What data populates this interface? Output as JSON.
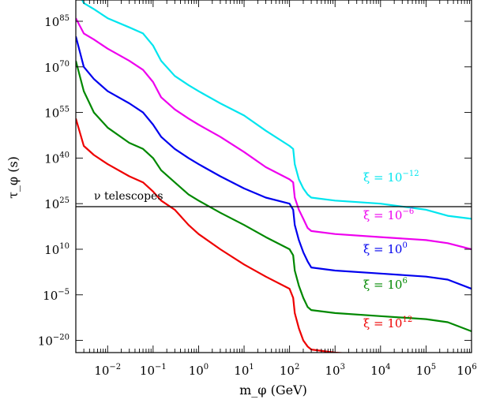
{
  "chart_data": {
    "type": "line",
    "xlabel": "m_φ (GeV)",
    "ylabel": "τ_φ (s)",
    "x_scale": "log",
    "y_scale": "log",
    "xlim": [
      0.002,
      1000000
    ],
    "ylim_log10": [
      -24,
      92
    ],
    "x_ticks": [
      {
        "base": "10",
        "exp": "−2",
        "value": 0.01
      },
      {
        "base": "10",
        "exp": "−1",
        "value": 0.1
      },
      {
        "base": "10",
        "exp": "0",
        "value": 1
      },
      {
        "base": "10",
        "exp": "1",
        "value": 10
      },
      {
        "base": "10",
        "exp": "2",
        "value": 100
      },
      {
        "base": "10",
        "exp": "3",
        "value": 1000
      },
      {
        "base": "10",
        "exp": "4",
        "value": 10000
      },
      {
        "base": "10",
        "exp": "5",
        "value": 100000
      },
      {
        "base": "10",
        "exp": "6",
        "value": 1000000
      }
    ],
    "y_ticks": [
      {
        "base": "10",
        "exp": "85",
        "log10": 85
      },
      {
        "base": "10",
        "exp": "70",
        "log10": 70
      },
      {
        "base": "10",
        "exp": "55",
        "log10": 55
      },
      {
        "base": "10",
        "exp": "40",
        "log10": 40
      },
      {
        "base": "10",
        "exp": "25",
        "log10": 25
      },
      {
        "base": "10",
        "exp": "10",
        "log10": 10
      },
      {
        "base": "10",
        "exp": "−5",
        "log10": -5
      },
      {
        "base": "10",
        "exp": "−20",
        "log10": -20
      }
    ],
    "reference_line": {
      "label": "ν telescopes",
      "log10_y": 24
    },
    "grid": false,
    "series": [
      {
        "name": "ξ = 10^−12",
        "label_base": "ξ = 10",
        "label_exp": "−12",
        "color": "#00e5ee",
        "points": [
          [
            0.002,
            96
          ],
          [
            0.003,
            91
          ],
          [
            0.005,
            89
          ],
          [
            0.01,
            86
          ],
          [
            0.03,
            83
          ],
          [
            0.06,
            81
          ],
          [
            0.1,
            77
          ],
          [
            0.15,
            72
          ],
          [
            0.3,
            67
          ],
          [
            0.6,
            64
          ],
          [
            1,
            62
          ],
          [
            3,
            58
          ],
          [
            10,
            54
          ],
          [
            30,
            49
          ],
          [
            100,
            44
          ],
          [
            120,
            43
          ],
          [
            130,
            38
          ],
          [
            160,
            33
          ],
          [
            200,
            30
          ],
          [
            250,
            28
          ],
          [
            300,
            27
          ],
          [
            1000,
            26
          ],
          [
            10000,
            25
          ],
          [
            100000,
            23
          ],
          [
            300000,
            21
          ],
          [
            1000000,
            20
          ]
        ]
      },
      {
        "name": "ξ = 10^−6",
        "label_base": "ξ = 10",
        "label_exp": "−6",
        "color": "#ee00ee",
        "points": [
          [
            0.002,
            86
          ],
          [
            0.003,
            81
          ],
          [
            0.005,
            79
          ],
          [
            0.01,
            76
          ],
          [
            0.03,
            72
          ],
          [
            0.06,
            69
          ],
          [
            0.1,
            65
          ],
          [
            0.15,
            60
          ],
          [
            0.3,
            56
          ],
          [
            0.6,
            53
          ],
          [
            1,
            51
          ],
          [
            3,
            47
          ],
          [
            10,
            42
          ],
          [
            30,
            37
          ],
          [
            100,
            33
          ],
          [
            120,
            32
          ],
          [
            130,
            27
          ],
          [
            160,
            23
          ],
          [
            200,
            20
          ],
          [
            250,
            17
          ],
          [
            300,
            16
          ],
          [
            1000,
            15
          ],
          [
            10000,
            14
          ],
          [
            100000,
            13
          ],
          [
            300000,
            12
          ],
          [
            1000000,
            10
          ]
        ]
      },
      {
        "name": "ξ = 10^0",
        "label_base": "ξ = 10",
        "label_exp": "0",
        "color": "#0000ee",
        "points": [
          [
            0.002,
            80
          ],
          [
            0.003,
            70
          ],
          [
            0.005,
            66
          ],
          [
            0.01,
            62
          ],
          [
            0.03,
            58
          ],
          [
            0.06,
            55
          ],
          [
            0.1,
            51
          ],
          [
            0.15,
            47
          ],
          [
            0.3,
            43
          ],
          [
            0.6,
            40
          ],
          [
            1,
            38
          ],
          [
            3,
            34
          ],
          [
            10,
            30
          ],
          [
            30,
            27
          ],
          [
            100,
            25
          ],
          [
            120,
            23
          ],
          [
            130,
            18
          ],
          [
            160,
            13
          ],
          [
            200,
            9
          ],
          [
            250,
            6
          ],
          [
            300,
            4
          ],
          [
            1000,
            3
          ],
          [
            10000,
            2
          ],
          [
            100000,
            1
          ],
          [
            300000,
            0
          ],
          [
            1000000,
            -3
          ]
        ]
      },
      {
        "name": "ξ = 10^6",
        "label_base": "ξ = 10",
        "label_exp": "6",
        "color": "#008800",
        "points": [
          [
            0.002,
            72
          ],
          [
            0.003,
            62
          ],
          [
            0.005,
            55
          ],
          [
            0.01,
            50
          ],
          [
            0.03,
            45
          ],
          [
            0.06,
            43
          ],
          [
            0.1,
            40
          ],
          [
            0.15,
            36
          ],
          [
            0.3,
            32
          ],
          [
            0.6,
            28
          ],
          [
            1,
            26
          ],
          [
            3,
            22
          ],
          [
            10,
            18
          ],
          [
            30,
            14
          ],
          [
            100,
            10
          ],
          [
            120,
            8
          ],
          [
            130,
            3
          ],
          [
            160,
            -2
          ],
          [
            200,
            -6
          ],
          [
            250,
            -9
          ],
          [
            300,
            -10
          ],
          [
            1000,
            -11
          ],
          [
            10000,
            -12
          ],
          [
            100000,
            -13
          ],
          [
            300000,
            -14
          ],
          [
            1000000,
            -17
          ]
        ]
      },
      {
        "name": "ξ = 10^12",
        "label_base": "ξ = 10",
        "label_exp": "12",
        "color": "#ee0000",
        "points": [
          [
            0.002,
            53
          ],
          [
            0.003,
            44
          ],
          [
            0.005,
            41
          ],
          [
            0.01,
            38
          ],
          [
            0.03,
            34
          ],
          [
            0.06,
            32
          ],
          [
            0.1,
            29
          ],
          [
            0.15,
            26
          ],
          [
            0.3,
            23
          ],
          [
            0.6,
            18
          ],
          [
            1,
            15
          ],
          [
            3,
            10
          ],
          [
            10,
            5
          ],
          [
            30,
            1
          ],
          [
            100,
            -3
          ],
          [
            120,
            -6
          ],
          [
            130,
            -11
          ],
          [
            160,
            -16
          ],
          [
            200,
            -20
          ],
          [
            250,
            -22
          ],
          [
            300,
            -23
          ],
          [
            1000,
            -24
          ],
          [
            10000,
            -25
          ],
          [
            100000,
            -26
          ],
          [
            300000,
            -28
          ],
          [
            1000000,
            -31
          ]
        ]
      }
    ]
  }
}
